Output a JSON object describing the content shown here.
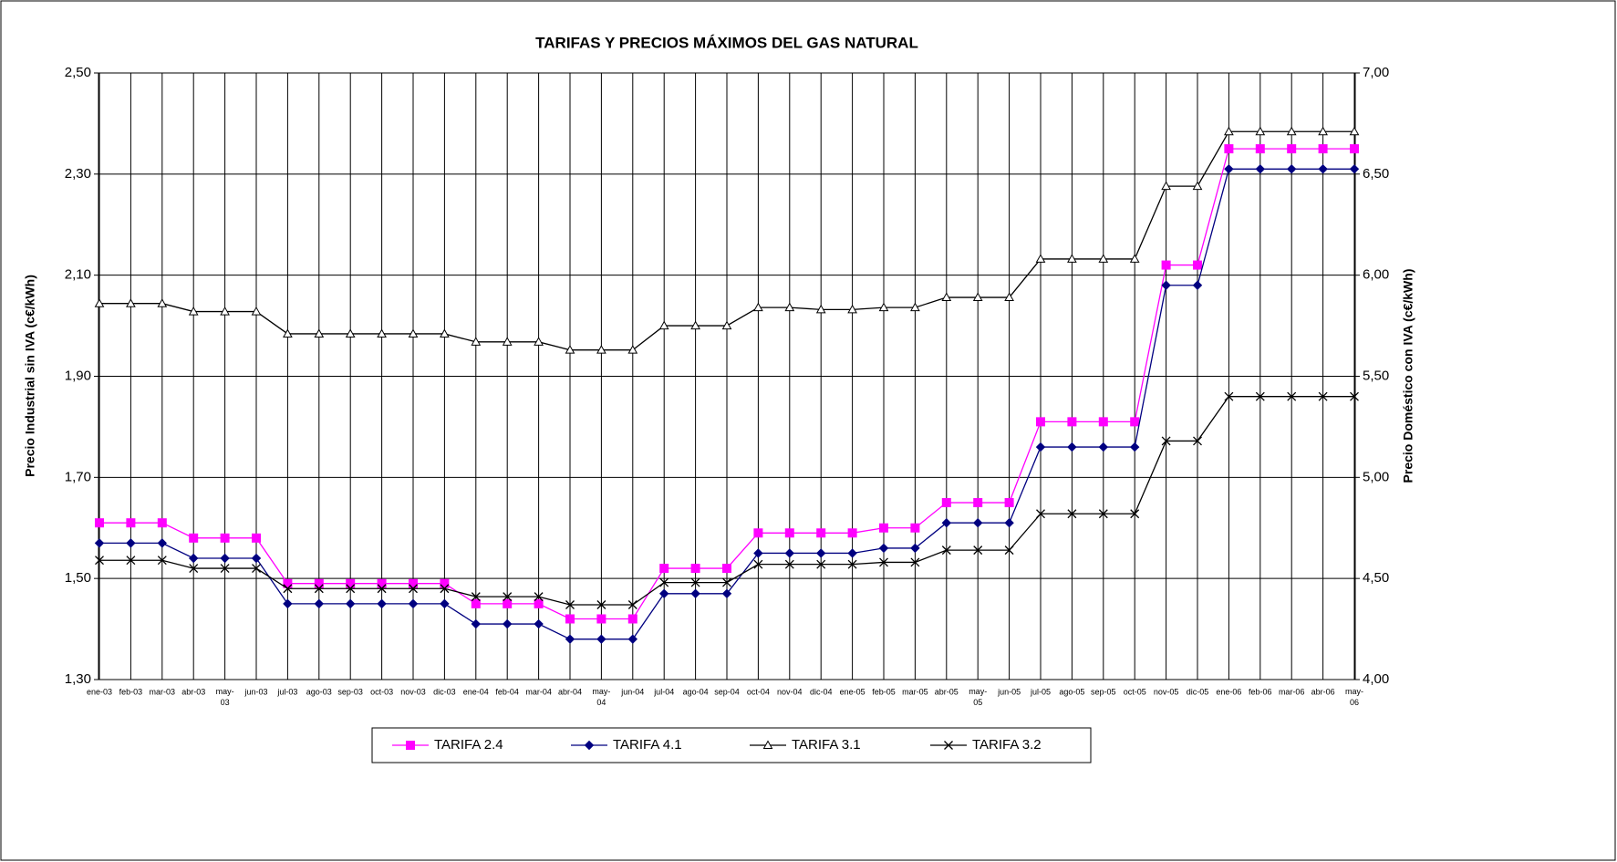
{
  "chart_data": {
    "type": "line",
    "title": "TARIFAS Y PRECIOS MÁXIMOS DEL GAS NATURAL",
    "y_label": "Precio Industrial sin IVA (c€/kWh)",
    "y2_label": "Precio Doméstico con IVA (c€/kWh)",
    "categories": [
      "ene-03",
      "feb-03",
      "mar-03",
      "abr-03",
      "may-03",
      "jun-03",
      "jul-03",
      "ago-03",
      "sep-03",
      "oct-03",
      "nov-03",
      "dic-03",
      "ene-04",
      "feb-04",
      "mar-04",
      "abr-04",
      "may-04",
      "jun-04",
      "jul-04",
      "ago-04",
      "sep-04",
      "oct-04",
      "nov-04",
      "dic-04",
      "ene-05",
      "feb-05",
      "mar-05",
      "abr-05",
      "may-05",
      "jun-05",
      "jul-05",
      "ago-05",
      "sep-05",
      "oct-05",
      "nov-05",
      "dic-05",
      "ene-06",
      "feb-06",
      "mar-06",
      "abr-06",
      "may-06"
    ],
    "ylim": [
      1.3,
      2.5
    ],
    "yticks": [
      {
        "value": 1.3,
        "label": "1,30"
      },
      {
        "value": 1.5,
        "label": "1,50"
      },
      {
        "value": 1.7,
        "label": "1,70"
      },
      {
        "value": 1.9,
        "label": "1,90"
      },
      {
        "value": 2.1,
        "label": "2,10"
      },
      {
        "value": 2.3,
        "label": "2,30"
      },
      {
        "value": 2.5,
        "label": "2,50"
      }
    ],
    "y2lim": [
      4,
      7
    ],
    "y2ticks": [
      {
        "value": 4,
        "label": "4,00"
      },
      {
        "value": 4.5,
        "label": "4,50"
      },
      {
        "value": 5,
        "label": "5,00"
      },
      {
        "value": 5.5,
        "label": "5,50"
      },
      {
        "value": 6,
        "label": "6,00"
      },
      {
        "value": 6.5,
        "label": "6,50"
      },
      {
        "value": 7,
        "label": "7,00"
      }
    ],
    "grid": true,
    "series": [
      {
        "name": "TARIFA 2.4",
        "color": "#ff00ff",
        "marker": "square",
        "axis": "y",
        "values": [
          1.61,
          1.61,
          1.61,
          1.58,
          1.58,
          1.58,
          1.49,
          1.49,
          1.49,
          1.49,
          1.49,
          1.49,
          1.45,
          1.45,
          1.45,
          1.42,
          1.42,
          1.42,
          1.52,
          1.52,
          1.52,
          1.59,
          1.59,
          1.59,
          1.59,
          1.6,
          1.6,
          1.65,
          1.65,
          1.65,
          1.81,
          1.81,
          1.81,
          1.81,
          2.12,
          2.12,
          2.35,
          2.35,
          2.35,
          2.35,
          2.35
        ]
      },
      {
        "name": "TARIFA 4.1",
        "color": "#000080",
        "marker": "diamond",
        "axis": "y",
        "values": [
          1.57,
          1.57,
          1.57,
          1.54,
          1.54,
          1.54,
          1.45,
          1.45,
          1.45,
          1.45,
          1.45,
          1.45,
          1.41,
          1.41,
          1.41,
          1.38,
          1.38,
          1.38,
          1.47,
          1.47,
          1.47,
          1.55,
          1.55,
          1.55,
          1.55,
          1.56,
          1.56,
          1.61,
          1.61,
          1.61,
          1.76,
          1.76,
          1.76,
          1.76,
          2.08,
          2.08,
          2.31,
          2.31,
          2.31,
          2.31,
          2.31
        ]
      },
      {
        "name": "TARIFA 3.1",
        "color": "#000000",
        "marker": "triangle",
        "axis": "y2",
        "values": [
          5.86,
          5.86,
          5.86,
          5.82,
          5.82,
          5.82,
          5.71,
          5.71,
          5.71,
          5.71,
          5.71,
          5.71,
          5.67,
          5.67,
          5.67,
          5.63,
          5.63,
          5.63,
          5.75,
          5.75,
          5.75,
          5.84,
          5.84,
          5.83,
          5.83,
          5.84,
          5.84,
          5.89,
          5.89,
          5.89,
          6.08,
          6.08,
          6.08,
          6.08,
          6.44,
          6.44,
          6.71,
          6.71,
          6.71,
          6.71,
          6.71
        ]
      },
      {
        "name": "TARIFA 3.2",
        "color": "#000000",
        "marker": "cross",
        "axis": "y2",
        "values": [
          4.59,
          4.59,
          4.59,
          4.55,
          4.55,
          4.55,
          4.45,
          4.45,
          4.45,
          4.45,
          4.45,
          4.45,
          4.41,
          4.41,
          4.41,
          4.37,
          4.37,
          4.37,
          4.48,
          4.48,
          4.48,
          4.57,
          4.57,
          4.57,
          4.57,
          4.58,
          4.58,
          4.64,
          4.64,
          4.64,
          4.82,
          4.82,
          4.82,
          4.82,
          5.18,
          5.18,
          5.4,
          5.4,
          5.4,
          5.4,
          5.4
        ]
      }
    ]
  }
}
